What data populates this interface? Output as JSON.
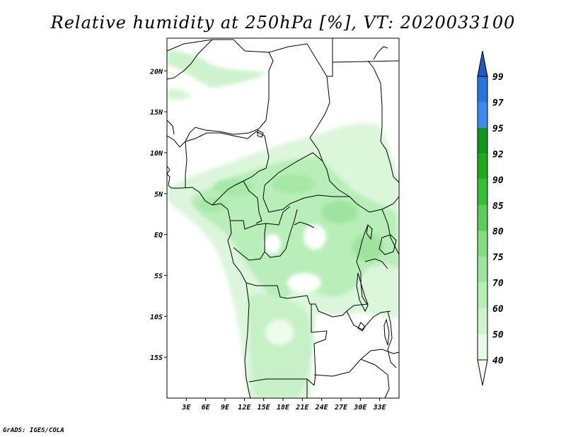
{
  "title": "Relative humidity at 250hPa [%], VT: 2020033100",
  "credit": "GrADS: IGES/COLA",
  "map": {
    "variable": "Relative humidity",
    "level": "250hPa",
    "units": "%",
    "valid_time": "2020033100",
    "lon_range": [
      0,
      36
    ],
    "lat_range": [
      -20,
      24
    ],
    "lat_ticks": [
      {
        "value": 20,
        "label": "20N"
      },
      {
        "value": 15,
        "label": "15N"
      },
      {
        "value": 10,
        "label": "10N"
      },
      {
        "value": 5,
        "label": "5N"
      },
      {
        "value": 0,
        "label": "EQ"
      },
      {
        "value": -5,
        "label": "5S"
      },
      {
        "value": -10,
        "label": "10S"
      },
      {
        "value": -15,
        "label": "15S"
      }
    ],
    "lon_ticks": [
      {
        "value": 3,
        "label": "3E"
      },
      {
        "value": 6,
        "label": "6E"
      },
      {
        "value": 9,
        "label": "9E"
      },
      {
        "value": 12,
        "label": "12E"
      },
      {
        "value": 15,
        "label": "15E"
      },
      {
        "value": 18,
        "label": "18E"
      },
      {
        "value": 21,
        "label": "21E"
      },
      {
        "value": 24,
        "label": "24E"
      },
      {
        "value": 27,
        "label": "27E"
      },
      {
        "value": 30,
        "label": "30E"
      },
      {
        "value": 33,
        "label": "33E"
      }
    ]
  },
  "colorbar": {
    "levels": [
      40,
      50,
      60,
      70,
      75,
      80,
      85,
      90,
      92,
      95,
      97,
      99
    ],
    "labels": [
      "40",
      "50",
      "60",
      "70",
      "75",
      "80",
      "85",
      "90",
      "92",
      "95",
      "97",
      "99"
    ],
    "colors": [
      "#ffffff",
      "#e6fae6",
      "#cdf5cd",
      "#b4f0b4",
      "#9be69b",
      "#82de82",
      "#5acd5a",
      "#37be37",
      "#1eaa1e",
      "#10961a",
      "#3c8cf0",
      "#2873dc",
      "#1e5ac8"
    ]
  }
}
